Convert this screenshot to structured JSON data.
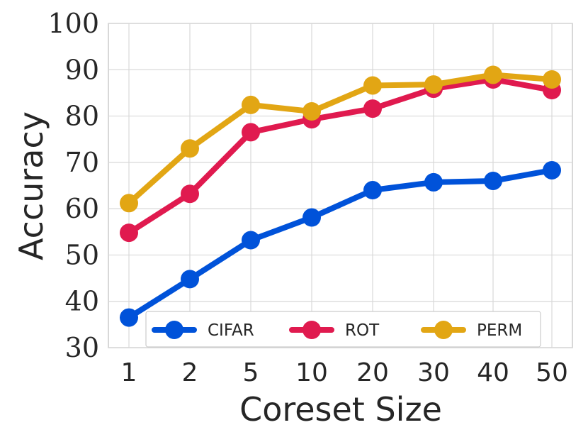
{
  "chart_data": {
    "type": "line",
    "title": "",
    "xlabel": "Coreset Size",
    "ylabel": "Accuracy",
    "categories": [
      "1",
      "2",
      "5",
      "10",
      "20",
      "30",
      "40",
      "50"
    ],
    "yticks": [
      "30",
      "40",
      "50",
      "60",
      "70",
      "80",
      "90",
      "100"
    ],
    "ylim": [
      30,
      100
    ],
    "grid": true,
    "legend_position": "bottom",
    "series": [
      {
        "name": "CIFAR",
        "color": "#0052d9",
        "values": [
          36.5,
          44.8,
          53.2,
          58.1,
          64.0,
          65.7,
          66.0,
          68.3
        ]
      },
      {
        "name": "ROT",
        "color": "#e01a4f",
        "values": [
          54.8,
          63.2,
          76.5,
          79.3,
          81.6,
          85.9,
          87.9,
          85.6
        ]
      },
      {
        "name": "PERM",
        "color": "#e2a614",
        "values": [
          61.2,
          73.0,
          82.4,
          81.0,
          86.6,
          86.8,
          88.9,
          87.9
        ]
      }
    ]
  }
}
